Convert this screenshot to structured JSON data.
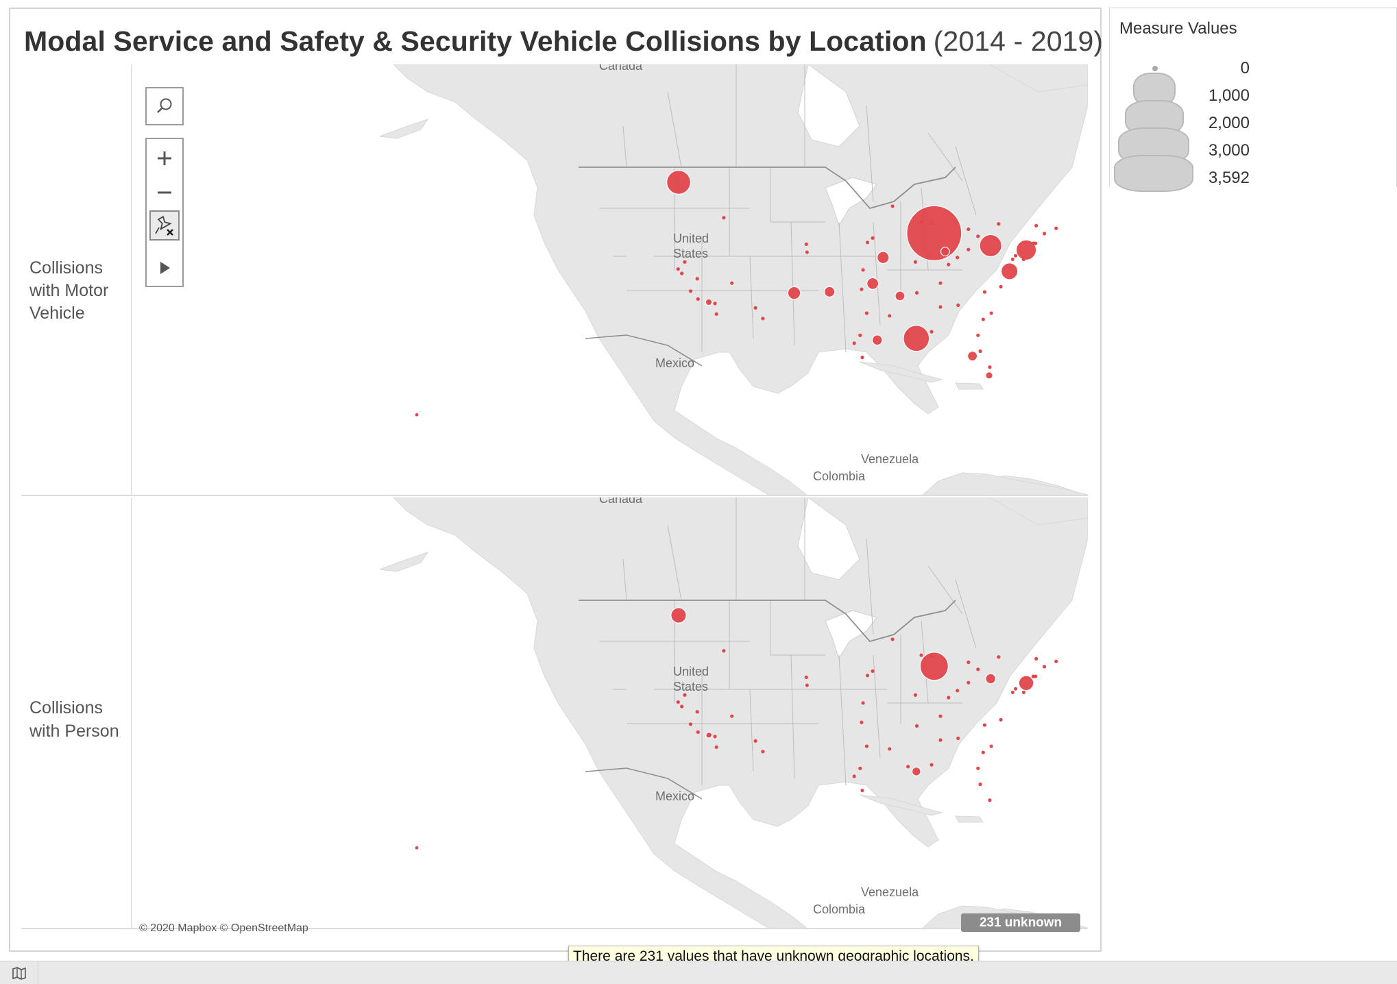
{
  "dashboard": {
    "title": "Modal Service and Safety & Security Vehicle Collisions by Location",
    "date_range": "(2014 - 2019)"
  },
  "rows": [
    {
      "label_lines": [
        "Collisions",
        "with Motor",
        "Vehicle"
      ]
    },
    {
      "label_lines": [
        "Collisions",
        "with Person"
      ]
    }
  ],
  "map_labels": {
    "canada": "Canada",
    "united_states_line1": "United",
    "united_states_line2": "States",
    "mexico": "Mexico",
    "venezuela": "Venezuela",
    "colombia": "Colombia"
  },
  "toolbar": {
    "search_icon": "magnifier-icon",
    "zoom_in_icon": "plus-icon",
    "zoom_out_icon": "minus-icon",
    "reset_icon": "pin-reset-icon",
    "expand_icon": "play-arrow-icon"
  },
  "attribution": "© 2020 Mapbox © OpenStreetMap",
  "unknown_badge": "231 unknown",
  "tooltip": "There are 231 values that have unknown geographic locations.",
  "legend": {
    "title": "Measure Values",
    "entries": [
      "0",
      "1,000",
      "2,000",
      "3,000",
      "3,592"
    ]
  },
  "colors": {
    "mark": "#e0474c",
    "land": "#e6e6e6",
    "water": "#ffffff",
    "border": "#bdbdbd",
    "legend_swatch": "#d0d0d0"
  },
  "chart_data": {
    "type": "scatter",
    "title": "Modal Service and Safety & Security Vehicle Collisions by Location (2014 - 2019)",
    "legend_title": "Measure Values",
    "size_scale": [
      0,
      1000,
      2000,
      3000,
      3592
    ],
    "series": [
      {
        "name": "Collisions with Motor Vehicle",
        "points": [
          {
            "lon": -87.65,
            "lat": 41.85,
            "value": 3592
          },
          {
            "lon": -122.33,
            "lat": 47.61,
            "value": 680
          },
          {
            "lon": -90.07,
            "lat": 29.95,
            "value": 800
          },
          {
            "lon": -79.99,
            "lat": 40.44,
            "value": 580
          },
          {
            "lon": -75.16,
            "lat": 39.95,
            "value": 480
          },
          {
            "lon": -77.43,
            "lat": 37.54,
            "value": 330
          },
          {
            "lon": -106.65,
            "lat": 35.08,
            "value": 190
          },
          {
            "lon": -94.58,
            "lat": 39.1,
            "value": 170
          },
          {
            "lon": -95.99,
            "lat": 36.15,
            "value": 160
          },
          {
            "lon": -101.85,
            "lat": 35.22,
            "value": 130
          },
          {
            "lon": -92.29,
            "lat": 34.75,
            "value": 110
          },
          {
            "lon": -95.37,
            "lat": 29.76,
            "value": 120
          },
          {
            "lon": -82.46,
            "lat": 27.95,
            "value": 110
          },
          {
            "lon": -86.16,
            "lat": 39.77,
            "value": 90
          },
          {
            "lon": -80.19,
            "lat": 25.76,
            "value": 60
          },
          {
            "lon": -118.24,
            "lat": 34.05,
            "value": 50
          },
          {
            "lon": -157.86,
            "lat": 21.31,
            "value": 10
          }
        ]
      },
      {
        "name": "Collisions with Person",
        "points": [
          {
            "lon": -87.65,
            "lat": 41.85,
            "value": 950
          },
          {
            "lon": -122.33,
            "lat": 47.61,
            "value": 280
          },
          {
            "lon": -75.16,
            "lat": 39.95,
            "value": 260
          },
          {
            "lon": -79.99,
            "lat": 40.44,
            "value": 120
          },
          {
            "lon": -90.07,
            "lat": 29.95,
            "value": 90
          },
          {
            "lon": -118.24,
            "lat": 34.05,
            "value": 40
          },
          {
            "lon": -157.86,
            "lat": 21.31,
            "value": 10
          }
        ]
      }
    ]
  }
}
